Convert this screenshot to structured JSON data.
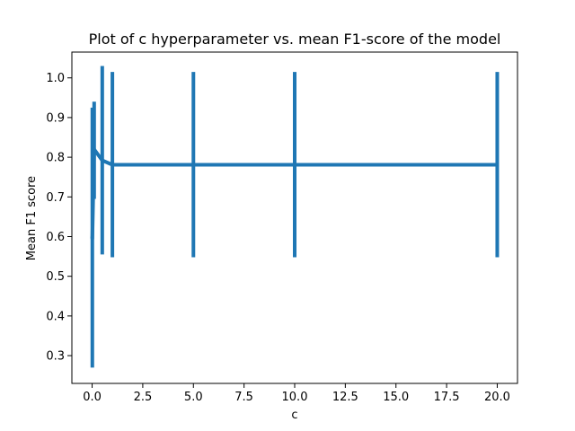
{
  "chart_data": {
    "type": "line",
    "title": "Plot of c hyperparameter vs. mean F1-score of the model",
    "xlabel": "c",
    "ylabel": "Mean F1 score",
    "xlim": [
      -1.0,
      21.0
    ],
    "ylim": [
      0.23,
      1.065
    ],
    "xticks": [
      0,
      2.5,
      5,
      7.5,
      10,
      12.5,
      15,
      17.5,
      20
    ],
    "xtick_labels": [
      "0.0",
      "2.5",
      "5.0",
      "7.5",
      "10.0",
      "12.5",
      "15.0",
      "17.5",
      "20.0"
    ],
    "yticks": [
      0.3,
      0.4,
      0.5,
      0.6,
      0.7,
      0.8,
      0.9,
      1.0
    ],
    "ytick_labels": [
      "0.3",
      "0.4",
      "0.5",
      "0.6",
      "0.7",
      "0.8",
      "0.9",
      "1.0"
    ],
    "grid": false,
    "color": "#1f77b4",
    "series": [
      {
        "x": [
          0.001,
          0.01,
          0.1,
          0.5,
          1,
          5,
          10,
          20
        ],
        "y": [
          0.6,
          0.595,
          0.82,
          0.792,
          0.781,
          0.781,
          0.781,
          0.781
        ],
        "yerr_low": [
          0.6,
          0.27,
          0.695,
          0.555,
          0.548,
          0.548,
          0.548,
          0.548
        ],
        "yerr_high": [
          0.6,
          0.925,
          0.94,
          1.03,
          1.015,
          1.015,
          1.015,
          1.015
        ]
      }
    ]
  }
}
